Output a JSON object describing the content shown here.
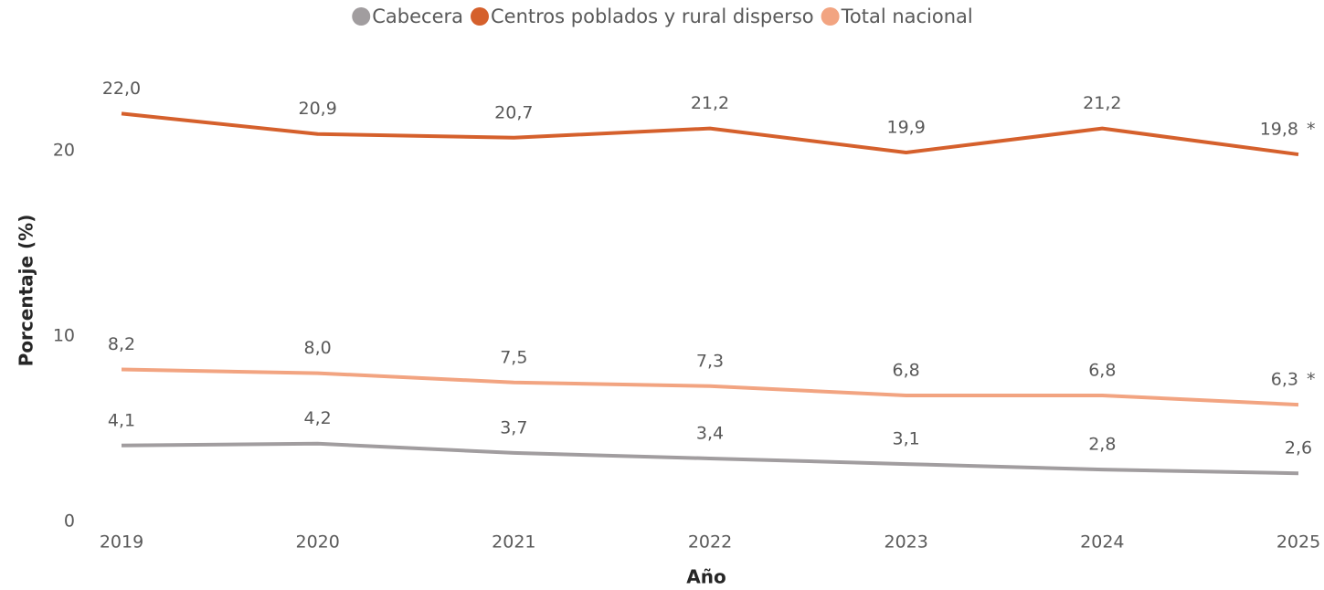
{
  "chart_data": {
    "type": "line",
    "x_label": "Año",
    "y_label": "Porcentaje (%)",
    "categories": [
      "2019",
      "2020",
      "2021",
      "2022",
      "2023",
      "2024",
      "2025"
    ],
    "series": [
      {
        "name": "Cabecera",
        "color": "#a19d9f",
        "values": [
          4.1,
          4.2,
          3.7,
          3.4,
          3.1,
          2.8,
          2.6
        ],
        "value_labels": [
          "4,1",
          "4,2",
          "3,7",
          "3,4",
          "3,1",
          "2,8",
          "2,6"
        ]
      },
      {
        "name": "Centros poblados y rural disperso",
        "color": "#d5602c",
        "values": [
          22.0,
          20.9,
          20.7,
          21.2,
          19.9,
          21.2,
          19.8
        ],
        "value_labels": [
          "22,0",
          "20,9",
          "20,7",
          "21,2",
          "19,9",
          "21,2",
          "19,8"
        ],
        "annotation": "*"
      },
      {
        "name": "Total nacional",
        "color": "#f2a481",
        "values": [
          8.2,
          8.0,
          7.5,
          7.3,
          6.8,
          6.8,
          6.3
        ],
        "value_labels": [
          "8,2",
          "8,0",
          "7,5",
          "7,3",
          "6,8",
          "6,8",
          "6,3"
        ],
        "annotation": "*"
      }
    ],
    "ylim": [
      0,
      24
    ],
    "yticks": [
      0,
      10,
      20
    ],
    "grid": false,
    "legend": "top"
  }
}
